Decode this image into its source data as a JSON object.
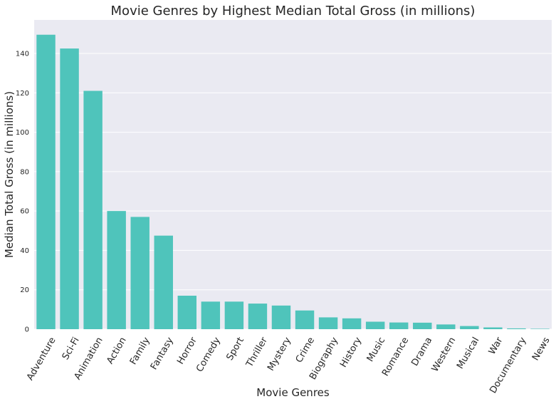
{
  "chart_data": {
    "type": "bar",
    "title": "Movie Genres by Highest Median Total Gross (in millions)",
    "xlabel": "Movie Genres",
    "ylabel": "Median Total Gross (in millions)",
    "categories": [
      "Adventure",
      "Sci-Fi",
      "Animation",
      "Action",
      "Family",
      "Fantasy",
      "Horror",
      "Comedy",
      "Sport",
      "Thriller",
      "Mystery",
      "Crime",
      "Biography",
      "History",
      "Music",
      "Romance",
      "Drama",
      "Western",
      "Musical",
      "War",
      "Documentary",
      "News"
    ],
    "values": [
      149.5,
      142.5,
      121,
      60,
      57,
      47.5,
      17,
      14,
      14,
      13,
      12,
      9.5,
      6,
      5.5,
      3.8,
      3.4,
      3.3,
      2.4,
      1.6,
      0.9,
      0.4,
      0.2
    ],
    "ylim": [
      0,
      157
    ],
    "yticks": [
      0,
      20,
      40,
      60,
      80,
      100,
      120,
      140
    ],
    "bar_color": "#4fc4bb",
    "background_color": "#eaeaf2",
    "grid": true
  }
}
